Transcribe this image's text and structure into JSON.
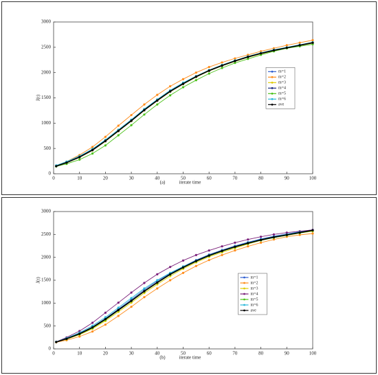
{
  "chart_data": [
    {
      "type": "line",
      "caption": "(a)",
      "xlabel": "iterate time",
      "ylabel": "J(t)",
      "xlim": [
        0,
        100
      ],
      "ylim": [
        0,
        3000
      ],
      "xticks": [
        0,
        10,
        20,
        30,
        40,
        50,
        60,
        70,
        80,
        90,
        100
      ],
      "yticks": [
        0,
        500,
        1000,
        1500,
        2000,
        2500,
        3000
      ],
      "legend_position": "right",
      "x": [
        1,
        5,
        10,
        15,
        20,
        25,
        30,
        35,
        40,
        45,
        50,
        55,
        60,
        65,
        70,
        75,
        80,
        85,
        90,
        95,
        100
      ],
      "series": [
        {
          "name": "m=1",
          "color": "#2f5fd0",
          "values": [
            155,
            225,
            340,
            480,
            660,
            860,
            1060,
            1270,
            1460,
            1640,
            1790,
            1930,
            2045,
            2145,
            2235,
            2315,
            2385,
            2445,
            2495,
            2545,
            2595
          ]
        },
        {
          "name": "m=2",
          "color": "#ff8c1a",
          "values": [
            160,
            240,
            370,
            530,
            730,
            950,
            1160,
            1370,
            1560,
            1730,
            1870,
            2000,
            2110,
            2200,
            2280,
            2350,
            2420,
            2480,
            2540,
            2590,
            2640
          ]
        },
        {
          "name": "m=3",
          "color": "#e0cc00",
          "values": [
            150,
            215,
            320,
            460,
            640,
            840,
            1040,
            1250,
            1440,
            1620,
            1770,
            1910,
            2030,
            2130,
            2220,
            2300,
            2370,
            2430,
            2480,
            2530,
            2580
          ]
        },
        {
          "name": "m=4",
          "color": "#1a2a80",
          "values": [
            150,
            218,
            325,
            465,
            645,
            845,
            1045,
            1255,
            1445,
            1625,
            1775,
            1915,
            2035,
            2135,
            2225,
            2305,
            2375,
            2435,
            2485,
            2535,
            2585
          ]
        },
        {
          "name": "m=5",
          "color": "#4cc21a",
          "values": [
            145,
            195,
            280,
            400,
            560,
            760,
            960,
            1170,
            1370,
            1550,
            1710,
            1850,
            1980,
            2090,
            2190,
            2270,
            2350,
            2420,
            2480,
            2520,
            2560
          ]
        },
        {
          "name": "m=6",
          "color": "#2ab8d8",
          "values": [
            165,
            240,
            350,
            490,
            670,
            870,
            1070,
            1280,
            1470,
            1650,
            1800,
            1930,
            2050,
            2150,
            2240,
            2320,
            2390,
            2450,
            2500,
            2550,
            2600
          ]
        },
        {
          "name": "ave",
          "color": "#000000",
          "values": [
            150,
            220,
            330,
            470,
            650,
            850,
            1050,
            1260,
            1450,
            1630,
            1780,
            1920,
            2040,
            2140,
            2230,
            2310,
            2380,
            2440,
            2490,
            2540,
            2590
          ]
        }
      ]
    },
    {
      "type": "line",
      "caption": "(b)",
      "xlabel": "iterate time",
      "ylabel": "J(t)",
      "xlim": [
        0,
        100
      ],
      "ylim": [
        0,
        3000
      ],
      "xticks": [
        0,
        10,
        20,
        30,
        40,
        50,
        60,
        70,
        80,
        90,
        100
      ],
      "yticks": [
        0,
        500,
        1000,
        1500,
        2000,
        2500,
        3000
      ],
      "legend_position": "center",
      "x": [
        1,
        5,
        10,
        15,
        20,
        25,
        30,
        35,
        40,
        45,
        50,
        55,
        60,
        65,
        70,
        75,
        80,
        85,
        90,
        95,
        100
      ],
      "series": [
        {
          "name": "m=1",
          "color": "#2f5fd0",
          "values": [
            150,
            225,
            340,
            480,
            665,
            870,
            1075,
            1290,
            1480,
            1650,
            1800,
            1940,
            2060,
            2160,
            2250,
            2330,
            2400,
            2460,
            2510,
            2560,
            2600
          ]
        },
        {
          "name": "m=2",
          "color": "#ff8c1a",
          "values": [
            145,
            190,
            270,
            380,
            530,
            720,
            920,
            1130,
            1320,
            1500,
            1660,
            1810,
            1940,
            2050,
            2150,
            2240,
            2320,
            2390,
            2450,
            2490,
            2520
          ]
        },
        {
          "name": "m=3",
          "color": "#e0cc00",
          "values": [
            150,
            210,
            310,
            440,
            610,
            810,
            1010,
            1220,
            1410,
            1590,
            1750,
            1890,
            2010,
            2110,
            2200,
            2290,
            2370,
            2430,
            2480,
            2530,
            2570
          ]
        },
        {
          "name": "m=4",
          "color": "#7a1f7a",
          "values": [
            155,
            250,
            390,
            570,
            790,
            1010,
            1230,
            1440,
            1630,
            1790,
            1930,
            2050,
            2150,
            2240,
            2320,
            2390,
            2450,
            2500,
            2540,
            2570,
            2600
          ]
        },
        {
          "name": "m=5",
          "color": "#4cc21a",
          "values": [
            150,
            215,
            320,
            455,
            635,
            840,
            1040,
            1250,
            1440,
            1620,
            1770,
            1910,
            2030,
            2130,
            2220,
            2300,
            2370,
            2430,
            2480,
            2530,
            2580
          ]
        },
        {
          "name": "m=6",
          "color": "#2ab8d8",
          "values": [
            155,
            235,
            355,
            505,
            690,
            900,
            1110,
            1320,
            1500,
            1660,
            1800,
            1930,
            2050,
            2150,
            2240,
            2320,
            2390,
            2450,
            2500,
            2550,
            2590
          ]
        },
        {
          "name": "ave",
          "color": "#000000",
          "values": [
            150,
            220,
            330,
            470,
            650,
            850,
            1050,
            1260,
            1450,
            1630,
            1780,
            1920,
            2040,
            2140,
            2230,
            2310,
            2380,
            2440,
            2490,
            2540,
            2590
          ]
        }
      ]
    }
  ]
}
